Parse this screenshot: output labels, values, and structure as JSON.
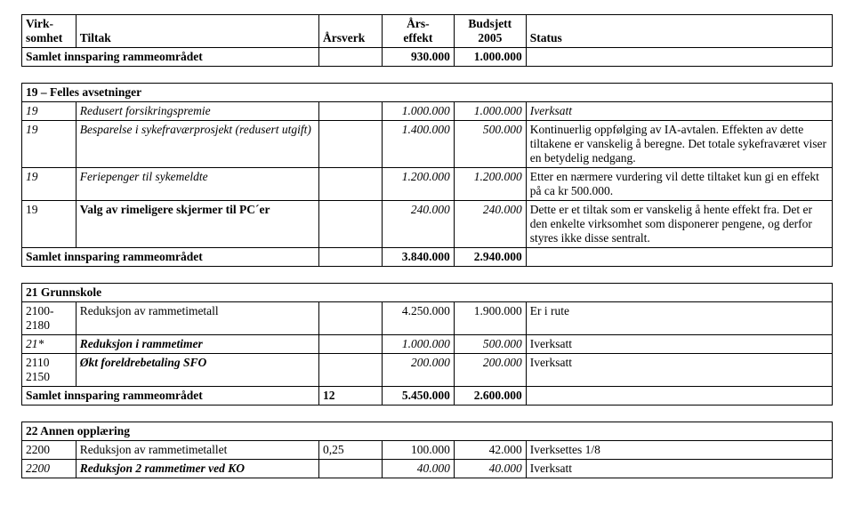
{
  "header": {
    "col1a": "Virk-",
    "col1b": "somhet",
    "col2": "Tiltak",
    "col3": "Årsverk",
    "col4a": "Års-",
    "col4b": "effekt",
    "col5a": "Budsjett",
    "col5b": "2005",
    "col6": "Status"
  },
  "samlet_label": "Samlet innsparing rammeområdet",
  "top": {
    "aars": "930.000",
    "bud": "1.000.000"
  },
  "sec19": {
    "title": "19 – Felles avsetninger",
    "r1": {
      "v": "19",
      "t": "Redusert forsikringspremie",
      "a": "1.000.000",
      "b": "1.000.000",
      "s": "Iverksatt"
    },
    "r2": {
      "v": "19",
      "t": "Besparelse i sykefraværprosjekt (redusert utgift)",
      "a": "1.400.000",
      "b": "500.000",
      "s": "Kontinuerlig oppfølging av IA-avtalen. Effekten av dette tiltakene er vanskelig å beregne. Det totale sykefraværet viser en betydelig nedgang."
    },
    "r3": {
      "v": "19",
      "t": "Feriepenger til sykemeldte",
      "a": "1.200.000",
      "b": "1.200.000",
      "s": "Etter en nærmere vurdering vil dette tiltaket kun gi en effekt på ca kr 500.000."
    },
    "r4": {
      "v": "19",
      "t": "Valg av rimeligere skjermer til PC´er",
      "a": "240.000",
      "b": "240.000",
      "s": "Dette er et tiltak som er vanskelig å hente effekt fra. Det er den enkelte virksomhet som disponerer pengene, og derfor styres ikke disse sentralt."
    },
    "sum": {
      "a": "3.840.000",
      "b": "2.940.000"
    }
  },
  "sec21": {
    "title": "21 Grunnskole",
    "r1": {
      "v": "2100-2180",
      "t": "Reduksjon av rammetimetall",
      "a": "4.250.000",
      "b": "1.900.000",
      "s": " Er i rute"
    },
    "r2": {
      "v": "21*",
      "t": "Reduksjon i rammetimer",
      "a": "1.000.000",
      "b": "500.000",
      "s": " Iverksatt"
    },
    "r3": {
      "v": "2110 2150",
      "t": "Økt foreldrebetaling SFO",
      "a": "200.000",
      "b": "200.000",
      "s": " Iverksatt"
    },
    "sum": {
      "av": "12",
      "a": "5.450.000",
      "b": "2.600.000"
    }
  },
  "sec22": {
    "title": "22 Annen opplæring",
    "r1": {
      "v": "2200",
      "t": "Reduksjon av rammetimetallet",
      "av": "0,25",
      "a": "100.000",
      "b": "42.000",
      "s": " Iverksettes 1/8"
    },
    "r2": {
      "v": "2200",
      "t": "Reduksjon 2 rammetimer ved KO",
      "a": "40.000",
      "b": "40.000",
      "s": " Iverksatt"
    }
  }
}
